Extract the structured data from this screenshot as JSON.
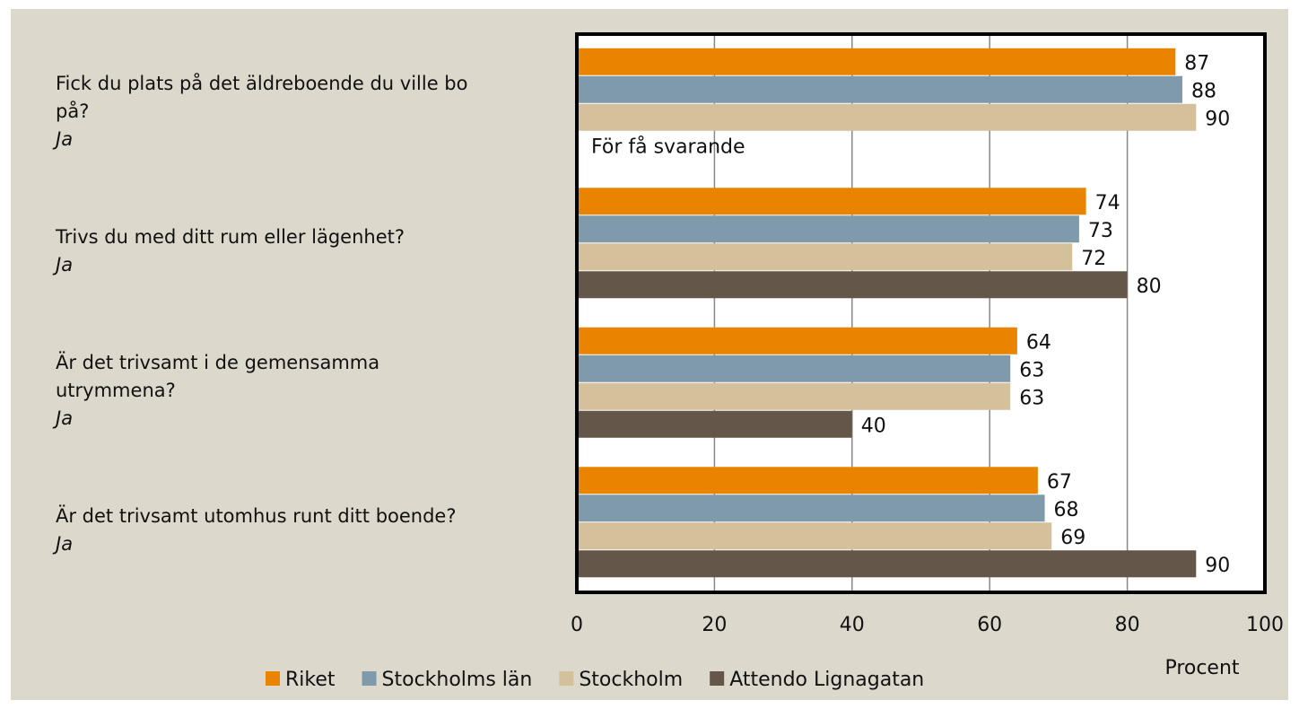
{
  "chart_data": {
    "type": "bar",
    "orientation": "horizontal",
    "categories": [
      "Fick du plats på det äldreboende du ville bo på?",
      "Trivs du med ditt rum eller lägenhet?",
      "Är det trivsamt i de gemensamma utrymmena?",
      "Är det trivsamt utomhus runt ditt boende?"
    ],
    "category_answers": [
      "Ja",
      "Ja",
      "Ja",
      "Ja"
    ],
    "series": [
      {
        "name": "Riket",
        "color": "#e98300",
        "values": [
          87,
          74,
          64,
          67
        ]
      },
      {
        "name": "Stockholms län",
        "color": "#7f9bab",
        "values": [
          88,
          73,
          63,
          68
        ]
      },
      {
        "name": "Stockholm",
        "color": "#d4c09a",
        "values": [
          90,
          72,
          63,
          69
        ]
      },
      {
        "name": "Attendo Lignagatan",
        "color": "#65564a",
        "values": [
          null,
          80,
          40,
          90
        ]
      }
    ],
    "annotation": "För få svarande",
    "xlabel": "Procent",
    "xlim": [
      0,
      100
    ],
    "xticks": [
      0,
      20,
      40,
      60,
      80,
      100
    ],
    "grid": true,
    "legend": "bottom"
  }
}
